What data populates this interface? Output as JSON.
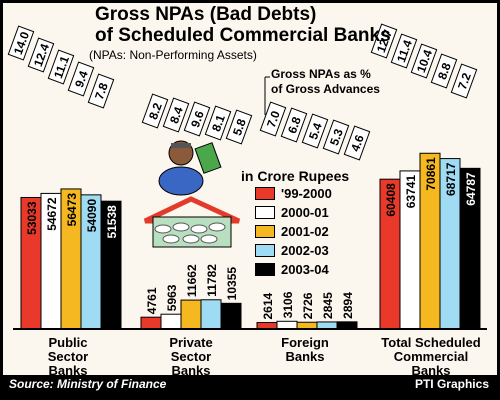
{
  "chart_data": {
    "type": "bar",
    "title": "Gross NPAs (Bad Debts) of Scheduled Commercial Banks",
    "title_line1": "Gross NPAs (Bad Debts)",
    "title_line2": "of Scheduled Commercial Banks",
    "subtitle": "(NPAs: Non-Performing Assets)",
    "unit_label": "in Crore Rupees",
    "ratio_label_line1": "Gross NPAs as %",
    "ratio_label_line2": "of Gross Advances",
    "categories": [
      "Public Sector Banks",
      "Private Sector Banks",
      "Foreign Banks",
      "Total Scheduled Commercial Banks"
    ],
    "category_label_lines": [
      [
        "Public",
        "Sector",
        "Banks"
      ],
      [
        "Private",
        "Sector",
        "Banks"
      ],
      [
        "Foreign",
        "Banks"
      ],
      [
        "Total Scheduled",
        "Commercial",
        "Banks"
      ]
    ],
    "series": [
      {
        "name": "'99-2000",
        "color": "#e8392b",
        "values": [
          53033,
          4761,
          2614,
          60408
        ]
      },
      {
        "name": "2000-01",
        "color": "#ffffff",
        "values": [
          54672,
          5963,
          3106,
          63741
        ]
      },
      {
        "name": "2001-02",
        "color": "#f5b820",
        "values": [
          56473,
          11662,
          2726,
          70861
        ]
      },
      {
        "name": "2002-03",
        "color": "#9fdcf4",
        "values": [
          54090,
          11782,
          2845,
          68717
        ]
      },
      {
        "name": "2003-04",
        "color": "#000000",
        "values": [
          51538,
          10355,
          2894,
          64787
        ]
      }
    ],
    "gross_npa_percent": [
      [
        14.0,
        12.4,
        11.1,
        9.4,
        7.8
      ],
      [
        8.2,
        8.4,
        9.6,
        8.1,
        5.8
      ],
      [
        7.0,
        6.8,
        5.4,
        5.3,
        4.6
      ],
      [
        12.7,
        11.4,
        10.4,
        8.8,
        7.2
      ]
    ],
    "ylim": [
      0,
      75000
    ],
    "legend_position": "center",
    "grid": false
  },
  "footer": {
    "source": "Source: Ministry of Finance",
    "credit": "PTI Graphics"
  }
}
